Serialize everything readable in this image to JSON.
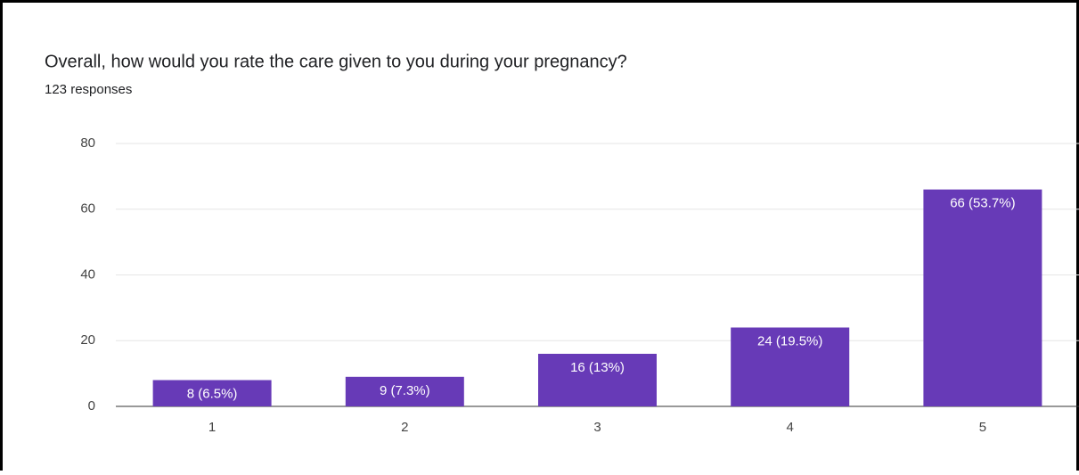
{
  "chart_data": {
    "type": "bar",
    "title": "Overall, how would you rate the care given to you during your pregnancy?",
    "subtitle": "123 responses",
    "categories": [
      "1",
      "2",
      "3",
      "4",
      "5"
    ],
    "values": [
      8,
      9,
      16,
      24,
      66
    ],
    "value_labels": [
      "8 (6.5%)",
      "9 (7.3%)",
      "16 (13%)",
      "24 (19.5%)",
      "66 (53.7%)"
    ],
    "color": "#673ab7",
    "ylim": [
      0,
      80
    ],
    "yticks": [
      0,
      20,
      40,
      60,
      80
    ],
    "grid": true
  }
}
